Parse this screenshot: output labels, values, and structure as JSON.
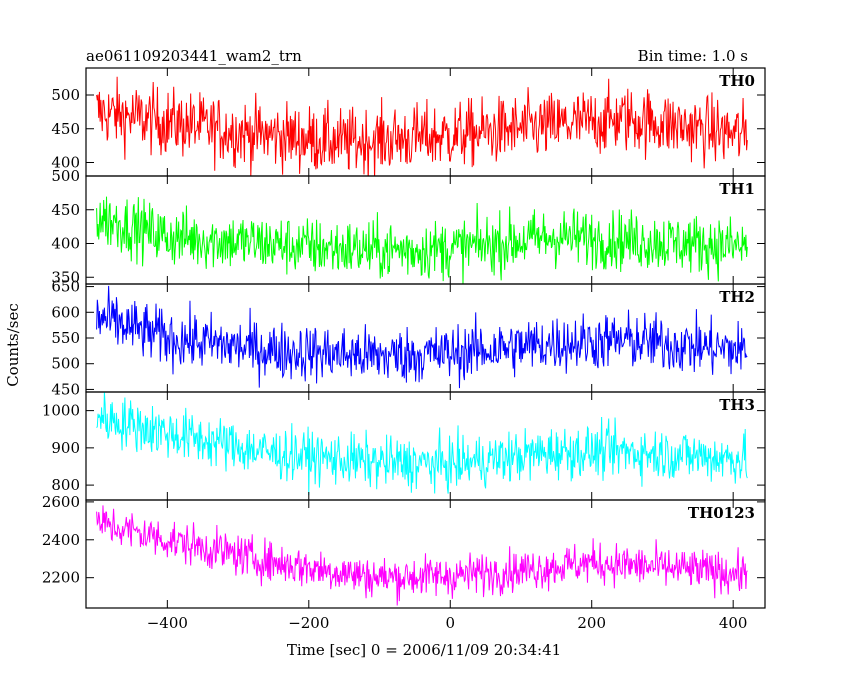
{
  "header": {
    "title": "ae061109203441_wam2_trn",
    "bin_time": "Bin time: 1.0 s"
  },
  "chart_data": {
    "type": "line",
    "title": "ae061109203441_wam2_trn",
    "subtitle": "Bin time: 1.0 s",
    "xlabel": "Time [sec] 0 = 2006/11/09 20:34:41",
    "ylabel": "Counts/sec",
    "xlim": [
      -515,
      445
    ],
    "xticks": [
      -400,
      -200,
      0,
      200,
      400
    ],
    "x_start": -500,
    "x_end": 420,
    "bin": 1.0,
    "panels": [
      {
        "name": "TH0",
        "color": "#ff0000",
        "ylim": [
          380,
          540
        ],
        "yticks": [
          400,
          450,
          500
        ],
        "trend": [
          [
            -500,
            475
          ],
          [
            -300,
            445
          ],
          [
            -150,
            430
          ],
          [
            0,
            440
          ],
          [
            150,
            455
          ],
          [
            250,
            465
          ],
          [
            420,
            440
          ]
        ],
        "noise": 25
      },
      {
        "name": "TH1",
        "color": "#00ff00",
        "ylim": [
          340,
          500
        ],
        "yticks": [
          350,
          400,
          450,
          500
        ],
        "trend": [
          [
            -500,
            440
          ],
          [
            -400,
            410
          ],
          [
            -200,
            395
          ],
          [
            -100,
            390
          ],
          [
            0,
            392
          ],
          [
            150,
            410
          ],
          [
            250,
            405
          ],
          [
            420,
            395
          ]
        ],
        "noise": 22
      },
      {
        "name": "TH2",
        "color": "#0000ff",
        "ylim": [
          445,
          655
        ],
        "yticks": [
          450,
          500,
          550,
          600,
          650
        ],
        "trend": [
          [
            -500,
            590
          ],
          [
            -400,
            550
          ],
          [
            -250,
            525
          ],
          [
            -100,
            515
          ],
          [
            0,
            520
          ],
          [
            150,
            540
          ],
          [
            250,
            545
          ],
          [
            420,
            525
          ]
        ],
        "noise": 28
      },
      {
        "name": "TH3",
        "color": "#00ffff",
        "ylim": [
          760,
          1050
        ],
        "yticks": [
          800,
          900,
          1000
        ],
        "trend": [
          [
            -500,
            985
          ],
          [
            -400,
            940
          ],
          [
            -250,
            885
          ],
          [
            -100,
            860
          ],
          [
            0,
            855
          ],
          [
            150,
            890
          ],
          [
            250,
            890
          ],
          [
            420,
            870
          ]
        ],
        "noise": 35
      },
      {
        "name": "TH0123",
        "color": "#ff00ff",
        "ylim": [
          2040,
          2610
        ],
        "yticks": [
          2200,
          2400,
          2600
        ],
        "trend": [
          [
            -500,
            2490
          ],
          [
            -400,
            2400
          ],
          [
            -250,
            2280
          ],
          [
            -100,
            2200
          ],
          [
            0,
            2210
          ],
          [
            100,
            2240
          ],
          [
            200,
            2280
          ],
          [
            420,
            2220
          ]
        ],
        "noise": 55
      }
    ]
  }
}
